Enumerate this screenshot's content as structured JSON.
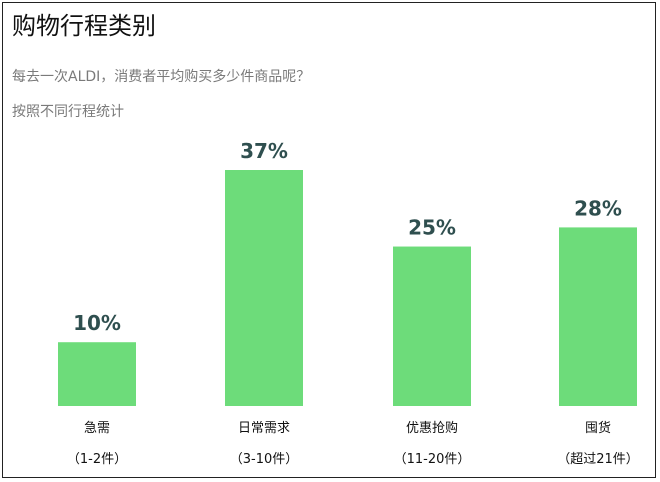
{
  "chart_data": {
    "type": "bar",
    "title": "购物行程类别",
    "subtitle": [
      "每去一次ALDI，消费者平均购买多少件商品呢？",
      "按照不同行程统计"
    ],
    "categories": [
      "急需",
      "日常需求",
      "优惠抢购",
      "囤货"
    ],
    "category_sublabels": [
      "（1-2件）",
      "（3-10件）",
      "（11-20件）",
      "（超过21件）"
    ],
    "values": [
      10,
      37,
      25,
      28
    ],
    "value_labels": [
      "10%",
      "37%",
      "25%",
      "28%"
    ],
    "ylim": [
      0,
      40
    ],
    "bar_color": "#6ddc7a",
    "label_color": "#2f4f4f",
    "grid": false,
    "legend": "none"
  }
}
